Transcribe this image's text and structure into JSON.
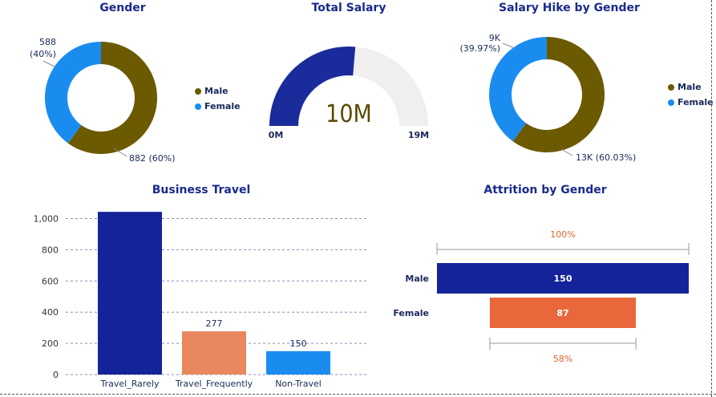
{
  "colors": {
    "male": "#6b5a00",
    "female": "#1a8cf0",
    "gauge_fill": "#1a2b9c",
    "gauge_track": "#f0efee",
    "title": "#1a2a8c",
    "funnel_pct": "#e0622a",
    "bar_rarely": "#14239a",
    "bar_frequently": "#e9875f",
    "bar_non": "#1a8cf0",
    "attr_male": "#14239a",
    "attr_female": "#e9673a"
  },
  "chart_data": [
    {
      "type": "pie",
      "variant": "donut",
      "title": "Gender",
      "labels": [
        "Male",
        "Female"
      ],
      "values": [
        882,
        588
      ],
      "percent_labels": [
        "882 (60%)",
        "588 (40%)"
      ],
      "legend": [
        "Male",
        "Female"
      ],
      "legend_position": "right"
    },
    {
      "type": "gauge",
      "title": "Total Salary",
      "value": 10,
      "value_label": "10M",
      "min_label": "0M",
      "max_label": "19M",
      "min": 0,
      "max": 19,
      "unit": "M"
    },
    {
      "type": "pie",
      "variant": "donut",
      "title": "Salary Hike by Gender",
      "labels": [
        "Male",
        "Female"
      ],
      "values": [
        13,
        9
      ],
      "percent_labels": [
        "13K (60.03%)",
        "9K (39.97%)"
      ],
      "shares": [
        60.03,
        39.97
      ],
      "legend": [
        "Male",
        "Female"
      ],
      "legend_position": "right"
    },
    {
      "type": "bar",
      "title": "Business Travel",
      "categories": [
        "Travel_Rarely",
        "Travel_Frequently",
        "Non-Travel"
      ],
      "values": [
        1043,
        277,
        150
      ],
      "data_labels": [
        "",
        "277",
        "150"
      ],
      "ylim": [
        0,
        1100
      ],
      "yticks": [
        "0",
        "200",
        "400",
        "600",
        "800",
        "1,000"
      ],
      "ytick_values": [
        0,
        200,
        400,
        600,
        800,
        1000
      ],
      "grid": true
    },
    {
      "type": "bar",
      "variant": "funnel",
      "title": "Attrition by Gender",
      "categories": [
        "Male",
        "Female"
      ],
      "values": [
        150,
        87
      ],
      "data_labels": [
        "150",
        "87"
      ],
      "top_percent": "100%",
      "bottom_percent": "58%",
      "female_share": 0.58
    }
  ]
}
